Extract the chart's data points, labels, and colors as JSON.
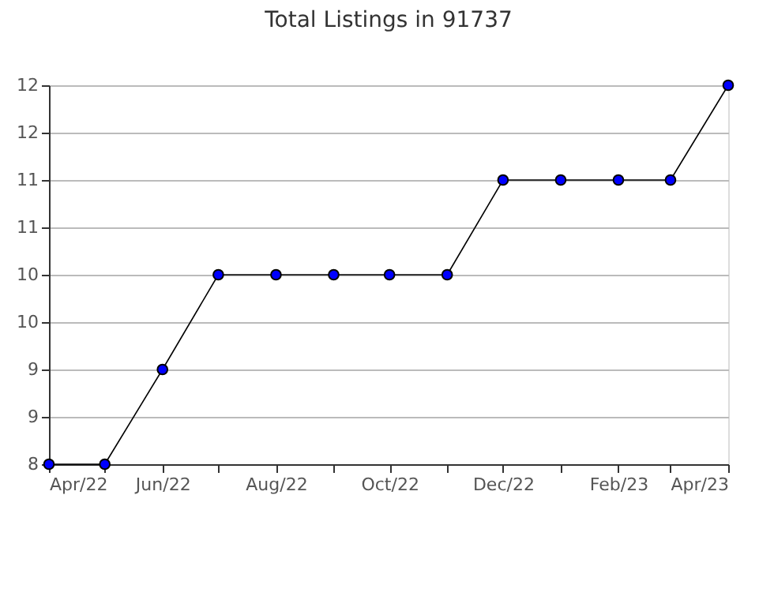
{
  "chart_data": {
    "type": "line",
    "title": "Total Listings in 91737",
    "x": [
      "2022-04",
      "2022-05",
      "2022-06",
      "2022-07",
      "2022-08",
      "2022-09",
      "2022-10",
      "2022-11",
      "2022-12",
      "2023-01",
      "2023-02",
      "2023-03",
      "2023-04"
    ],
    "series": [
      {
        "color": "#0000ff",
        "values": [
          8,
          8,
          9,
          10,
          10,
          10,
          10,
          10,
          11,
          11,
          11,
          11,
          12
        ]
      }
    ],
    "xlim": [
      "2022-04",
      "2023-04"
    ],
    "xticks": [
      {
        "value": "2022-04",
        "label": "Apr/22"
      },
      {
        "value": "2022-05",
        "label": null
      },
      {
        "value": "2022-06",
        "label": "Jun/22"
      },
      {
        "value": "2022-07",
        "label": null
      },
      {
        "value": "2022-08",
        "label": "Aug/22"
      },
      {
        "value": "2022-09",
        "label": null
      },
      {
        "value": "2022-10",
        "label": "Oct/22"
      },
      {
        "value": "2022-11",
        "label": null
      },
      {
        "value": "2022-12",
        "label": "Dec/22"
      },
      {
        "value": "2023-01",
        "label": null
      },
      {
        "value": "2023-02",
        "label": "Feb/23"
      },
      {
        "value": "2023-03",
        "label": null
      },
      {
        "value": "2023-04",
        "label": "Apr/23"
      }
    ],
    "ylim": [
      8,
      12
    ],
    "yticks": [
      8,
      {
        "value": 8.5,
        "label": "9"
      },
      9,
      {
        "value": 9.5,
        "label": "10"
      },
      10,
      {
        "value": 10.5,
        "label": "11"
      },
      11,
      {
        "value": 11.5,
        "label": "12"
      },
      12
    ],
    "grid": "y",
    "marker": "circle",
    "line_style": "solid"
  }
}
